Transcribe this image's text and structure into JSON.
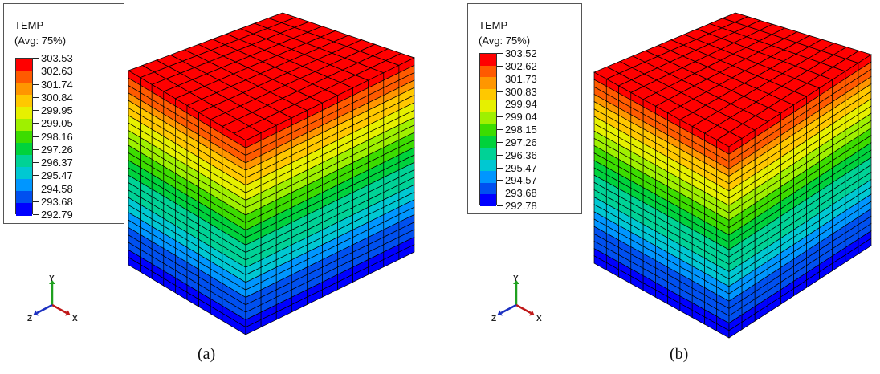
{
  "panels": [
    {
      "legend": {
        "title": "TEMP",
        "subtitle": "(Avg: 75%)",
        "values": [
          "303.53",
          "302.63",
          "301.74",
          "300.84",
          "299.95",
          "299.05",
          "298.16",
          "297.26",
          "296.37",
          "295.47",
          "294.58",
          "293.68",
          "292.79"
        ]
      },
      "triad": {
        "y": "Y",
        "z": "Z",
        "x": "X"
      },
      "caption": "(a)"
    },
    {
      "legend": {
        "title": "TEMP",
        "subtitle": "(Avg: 75%)",
        "values": [
          "303.52",
          "302.62",
          "301.73",
          "300.83",
          "299.94",
          "299.04",
          "298.15",
          "297.26",
          "296.36",
          "295.47",
          "294.57",
          "293.68",
          "292.78"
        ]
      },
      "triad": {
        "y": "Y",
        "z": "Z",
        "x": "X"
      },
      "caption": "(b)"
    }
  ],
  "colors": {
    "contour_scale": [
      "#ff0000",
      "#ff5a00",
      "#ff9600",
      "#ffc800",
      "#e6f000",
      "#9ff000",
      "#3cdc00",
      "#00d23c",
      "#00d296",
      "#00c8d2",
      "#0096ff",
      "#0050f0",
      "#0000ff"
    ],
    "axis_y": "#1fa01f",
    "axis_x": "#c01818",
    "axis_z": "#1a2fc0",
    "mesh_line": "#000000"
  }
}
